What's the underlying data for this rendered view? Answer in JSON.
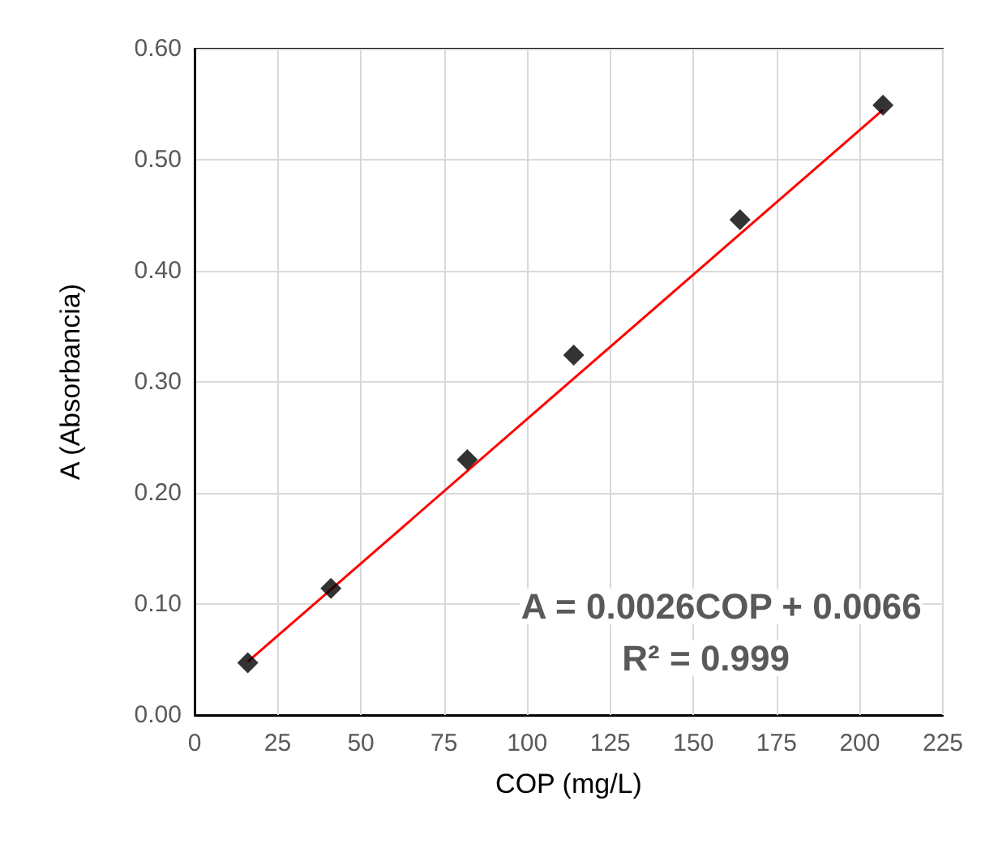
{
  "chart_data": {
    "type": "scatter",
    "xlabel": "COP (mg/L)",
    "ylabel": "A (Absorbancia)",
    "xlim": [
      0,
      225
    ],
    "xticks": [
      0,
      25,
      50,
      75,
      100,
      125,
      150,
      175,
      200,
      225
    ],
    "ylim": [
      0,
      0.6
    ],
    "yticks": [
      {
        "value": 0,
        "label": "0.00"
      },
      {
        "value": 0.1,
        "label": "0.10"
      },
      {
        "value": 0.2,
        "label": "0.20"
      },
      {
        "value": 0.3,
        "label": "0.30"
      },
      {
        "value": 0.4,
        "label": "0.40"
      },
      {
        "value": 0.5,
        "label": "0.50"
      },
      {
        "value": 0.6,
        "label": "0.60"
      }
    ],
    "grid": true,
    "marker": "diamond",
    "series": [
      {
        "type": "scatter",
        "color": "#000000",
        "x": [
          16,
          41,
          82,
          114,
          164,
          207
        ],
        "values": [
          0.047,
          0.114,
          0.23,
          0.324,
          0.446,
          0.549
        ]
      },
      {
        "type": "line",
        "color": "#ff0000",
        "line_style": "solid",
        "marker": "none",
        "x": [
          16,
          207
        ],
        "values": [
          0.048,
          0.545
        ]
      }
    ],
    "annotations": [
      "A = 0.0026COP + 0.0066",
      "R² = 0.999"
    ]
  }
}
